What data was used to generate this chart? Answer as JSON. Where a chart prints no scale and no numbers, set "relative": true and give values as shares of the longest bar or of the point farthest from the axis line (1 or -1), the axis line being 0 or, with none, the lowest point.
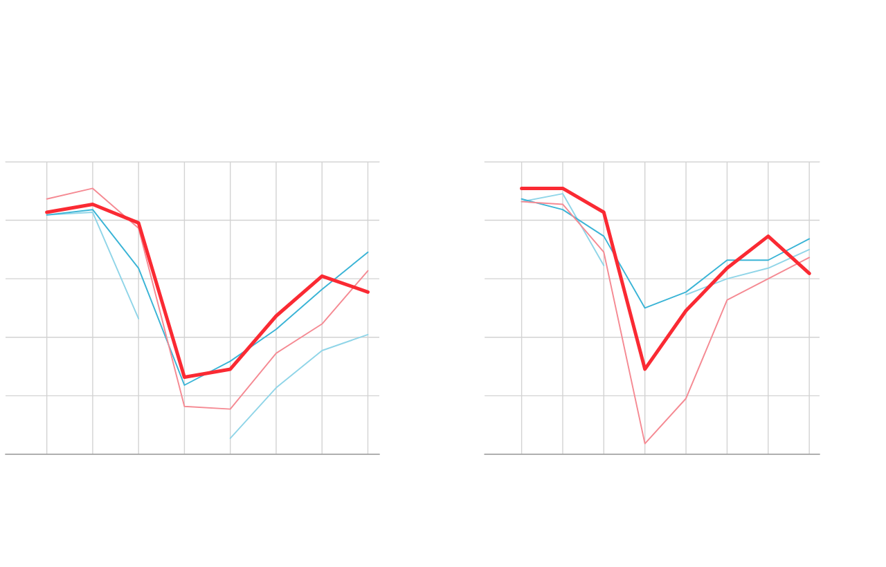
{
  "chart_data": [
    {
      "type": "line",
      "relative": true,
      "categories": [
        null,
        null,
        null,
        null,
        null,
        null,
        null,
        null
      ],
      "grid": true,
      "tick_labels": false,
      "line_style": "solid",
      "series": [
        {
          "color": "#fa2a33",
          "values": [
            0.91,
            0.94,
            0.87,
            0.29,
            0.32,
            0.52,
            0.67,
            0.61
          ]
        },
        {
          "color": "#f58a93",
          "values": [
            0.96,
            1.0,
            0.85,
            0.18,
            0.17,
            0.38,
            0.49,
            0.69
          ]
        },
        {
          "color": "#3ab4d6",
          "values": [
            0.9,
            0.92,
            0.7,
            0.26,
            0.35,
            0.47,
            0.62,
            0.76
          ]
        },
        {
          "color": "#90d5e8",
          "values": [
            0.9,
            0.91,
            0.51,
            null,
            0.06,
            0.25,
            0.39,
            0.45
          ]
        }
      ]
    },
    {
      "type": "line",
      "relative": true,
      "categories": [
        null,
        null,
        null,
        null,
        null,
        null,
        null,
        null
      ],
      "grid": true,
      "tick_labels": false,
      "line_style": "solid",
      "series": [
        {
          "color": "#fa2a33",
          "values": [
            1.0,
            1.0,
            0.91,
            0.32,
            0.54,
            0.7,
            0.82,
            0.68
          ]
        },
        {
          "color": "#f58a93",
          "values": [
            0.95,
            0.94,
            0.76,
            0.04,
            0.21,
            0.58,
            0.66,
            0.74
          ]
        },
        {
          "color": "#3ab4d6",
          "values": [
            0.96,
            0.92,
            0.82,
            0.55,
            0.61,
            0.73,
            0.73,
            0.81
          ]
        },
        {
          "color": "#90d5e8",
          "values": [
            0.95,
            0.98,
            0.71,
            null,
            0.6,
            0.66,
            0.7,
            0.77
          ]
        }
      ]
    }
  ]
}
